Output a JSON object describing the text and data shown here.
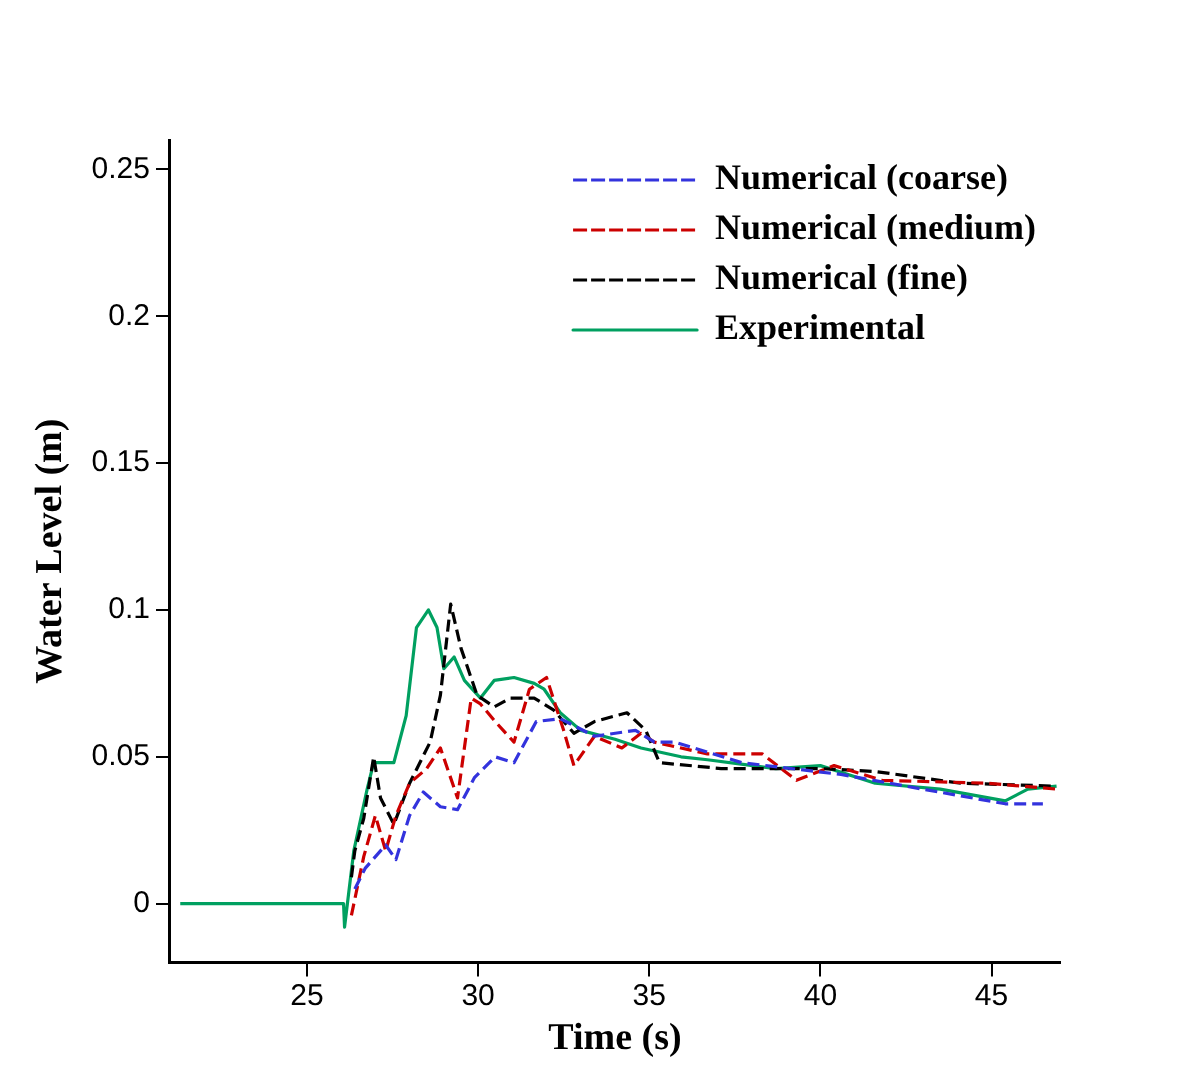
{
  "chart_data": {
    "type": "line",
    "xlabel": "Time (s)",
    "ylabel": "Water Level (m)",
    "xlim": [
      21,
      47
    ],
    "ylim": [
      -0.02,
      0.26
    ],
    "xticks": [
      25,
      30,
      35,
      40,
      45
    ],
    "yticks": [
      0,
      0.05,
      0.1,
      0.15,
      0.2,
      0.25
    ],
    "grid": false,
    "legend": "top right",
    "marker": "none",
    "series": [
      {
        "name": "Numerical (coarse)",
        "color": "#3333dd",
        "line_style": "dashed",
        "x": [
          26.4,
          26.7,
          27.3,
          27.6,
          28.0,
          28.4,
          28.9,
          29.4,
          29.9,
          30.5,
          31.05,
          31.7,
          32.4,
          33.4,
          34.6,
          35.15,
          35.75,
          37.7,
          40.6,
          42.5,
          45.4,
          46.5
        ],
        "values": [
          0.005,
          0.012,
          0.02,
          0.015,
          0.03,
          0.038,
          0.033,
          0.032,
          0.043,
          0.05,
          0.048,
          0.062,
          0.063,
          0.057,
          0.059,
          0.055,
          0.055,
          0.048,
          0.044,
          0.04,
          0.034,
          0.034
        ]
      },
      {
        "name": "Numerical (medium)",
        "color": "#cc0000",
        "line_style": "dashed",
        "x": [
          26.3,
          26.66,
          27.0,
          27.3,
          27.6,
          28.0,
          28.5,
          28.9,
          29.4,
          29.8,
          30.07,
          30.5,
          31.05,
          31.5,
          32.0,
          32.5,
          32.8,
          33.4,
          34.2,
          34.76,
          35.15,
          36.7,
          38.3,
          39.3,
          40.4,
          41.8,
          44.9,
          46.9
        ],
        "values": [
          -0.004,
          0.016,
          0.03,
          0.018,
          0.03,
          0.041,
          0.046,
          0.053,
          0.036,
          0.07,
          0.068,
          0.062,
          0.055,
          0.073,
          0.077,
          0.059,
          0.047,
          0.057,
          0.053,
          0.058,
          0.055,
          0.051,
          0.051,
          0.042,
          0.047,
          0.042,
          0.041,
          0.039
        ]
      },
      {
        "name": "Numerical (fine)",
        "color": "#000000",
        "line_style": "dashed",
        "x": [
          26.3,
          26.4,
          26.66,
          26.95,
          27.15,
          27.54,
          28.0,
          28.6,
          28.9,
          29.2,
          29.5,
          29.97,
          30.47,
          30.95,
          31.64,
          32.2,
          32.8,
          33.4,
          34.35,
          34.9,
          35.3,
          37.1,
          40.0,
          41.6,
          44.1,
          46.9
        ],
        "values": [
          0.009,
          0.018,
          0.029,
          0.05,
          0.036,
          0.027,
          0.041,
          0.055,
          0.071,
          0.102,
          0.087,
          0.071,
          0.067,
          0.07,
          0.07,
          0.066,
          0.058,
          0.062,
          0.065,
          0.059,
          0.048,
          0.046,
          0.046,
          0.045,
          0.041,
          0.04
        ]
      },
      {
        "name": "Experimental",
        "color": "#00a060",
        "line_style": "solid",
        "x": [
          21.3,
          26.07,
          26.1,
          26.37,
          26.76,
          26.95,
          27.54,
          27.9,
          28.2,
          28.55,
          28.8,
          29.0,
          29.3,
          29.6,
          30.07,
          30.47,
          31.05,
          31.64,
          31.93,
          32.4,
          33.0,
          34.0,
          34.76,
          35.93,
          36.7,
          38.7,
          40.0,
          41.6,
          43.5,
          45.4,
          46.06,
          46.9
        ],
        "values": [
          0,
          0,
          -0.008,
          0.018,
          0.039,
          0.048,
          0.048,
          0.064,
          0.094,
          0.1,
          0.094,
          0.08,
          0.084,
          0.076,
          0.07,
          0.076,
          0.077,
          0.075,
          0.073,
          0.065,
          0.059,
          0.056,
          0.053,
          0.05,
          0.049,
          0.046,
          0.047,
          0.041,
          0.039,
          0.035,
          0.039,
          0.04
        ]
      }
    ]
  }
}
